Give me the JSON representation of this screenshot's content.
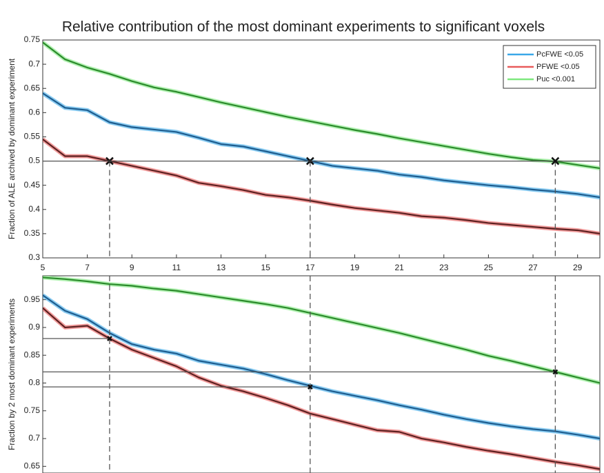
{
  "chart_data": [
    {
      "type": "line",
      "title": "Relative contribution of the most dominant experiments to significant voxels",
      "y_label": "Fraction of ALE archived by dominant experiment",
      "x": [
        5,
        6,
        7,
        8,
        9,
        10,
        11,
        12,
        13,
        14,
        15,
        16,
        17,
        18,
        19,
        20,
        21,
        22,
        23,
        24,
        25,
        26,
        27,
        28,
        29,
        30
      ],
      "xlim": [
        5,
        30
      ],
      "xticks": [
        5,
        7,
        9,
        11,
        13,
        15,
        17,
        19,
        21,
        23,
        25,
        27,
        29
      ],
      "ylim": [
        0.3,
        0.75
      ],
      "yticks": [
        0.3,
        0.35,
        0.4,
        0.45,
        0.5,
        0.55,
        0.6,
        0.65,
        0.7,
        0.75
      ],
      "legend": "upper right",
      "series": [
        {
          "name": "PcFWE <0.05",
          "color": "#3aa8e8",
          "line_color": "#1d5c8e",
          "values": [
            0.64,
            0.61,
            0.605,
            0.58,
            0.57,
            0.565,
            0.56,
            0.548,
            0.535,
            0.53,
            0.52,
            0.51,
            0.5,
            0.49,
            0.485,
            0.48,
            0.472,
            0.467,
            0.46,
            0.455,
            0.45,
            0.446,
            0.441,
            0.437,
            0.432,
            0.425
          ]
        },
        {
          "name": "PFWE <0.05",
          "color": "#e85a5a",
          "line_color": "#5c2020",
          "values": [
            0.545,
            0.51,
            0.51,
            0.5,
            0.49,
            0.48,
            0.47,
            0.455,
            0.448,
            0.44,
            0.43,
            0.425,
            0.418,
            0.41,
            0.403,
            0.398,
            0.393,
            0.386,
            0.383,
            0.378,
            0.372,
            0.368,
            0.364,
            0.36,
            0.357,
            0.35
          ]
        },
        {
          "name": "Puc <0.001",
          "color": "#7ee87e",
          "line_color": "#2a8a2a",
          "values": [
            0.745,
            0.71,
            0.693,
            0.68,
            0.665,
            0.652,
            0.643,
            0.632,
            0.621,
            0.611,
            0.601,
            0.591,
            0.582,
            0.573,
            0.564,
            0.556,
            0.547,
            0.539,
            0.531,
            0.523,
            0.515,
            0.508,
            0.502,
            0.499,
            0.492,
            0.485
          ]
        }
      ],
      "crossings": [
        {
          "x": 8,
          "y": 0.5
        },
        {
          "x": 17,
          "y": 0.5
        },
        {
          "x": 28,
          "y": 0.5
        }
      ],
      "crossing_line_full": true
    },
    {
      "type": "line",
      "y_label": "Fraction by 2 most dominant experiments",
      "x": [
        5,
        6,
        7,
        8,
        9,
        10,
        11,
        12,
        13,
        14,
        15,
        16,
        17,
        18,
        19,
        20,
        21,
        22,
        23,
        24,
        25,
        26,
        27,
        28,
        29,
        30
      ],
      "xlim": [
        5,
        30
      ],
      "ylim": [
        0.638,
        0.993
      ],
      "yticks": [
        0.65,
        0.7,
        0.75,
        0.8,
        0.85,
        0.9,
        0.95
      ],
      "series": [
        {
          "color": "#3aa8e8",
          "line_color": "#1d5c8e",
          "values": [
            0.958,
            0.93,
            0.915,
            0.89,
            0.87,
            0.86,
            0.853,
            0.84,
            0.833,
            0.826,
            0.816,
            0.805,
            0.795,
            0.785,
            0.777,
            0.769,
            0.76,
            0.752,
            0.743,
            0.735,
            0.728,
            0.722,
            0.717,
            0.713,
            0.707,
            0.7
          ]
        },
        {
          "color": "#e85a5a",
          "line_color": "#5c2020",
          "values": [
            0.935,
            0.9,
            0.903,
            0.88,
            0.86,
            0.845,
            0.83,
            0.81,
            0.795,
            0.785,
            0.773,
            0.76,
            0.745,
            0.735,
            0.725,
            0.715,
            0.712,
            0.7,
            0.693,
            0.685,
            0.678,
            0.672,
            0.665,
            0.658,
            0.652,
            0.645
          ]
        },
        {
          "color": "#7ee87e",
          "line_color": "#2a8a2a",
          "values": [
            0.99,
            0.987,
            0.983,
            0.978,
            0.975,
            0.97,
            0.966,
            0.96,
            0.954,
            0.948,
            0.942,
            0.935,
            0.926,
            0.917,
            0.908,
            0.899,
            0.89,
            0.88,
            0.87,
            0.86,
            0.849,
            0.84,
            0.83,
            0.82,
            0.81,
            0.8
          ]
        }
      ],
      "crossings": [
        {
          "x": 8,
          "y": 0.88
        },
        {
          "x": 17,
          "y": 0.793
        },
        {
          "x": 28,
          "y": 0.82
        }
      ],
      "crossing_line_full": false
    }
  ]
}
